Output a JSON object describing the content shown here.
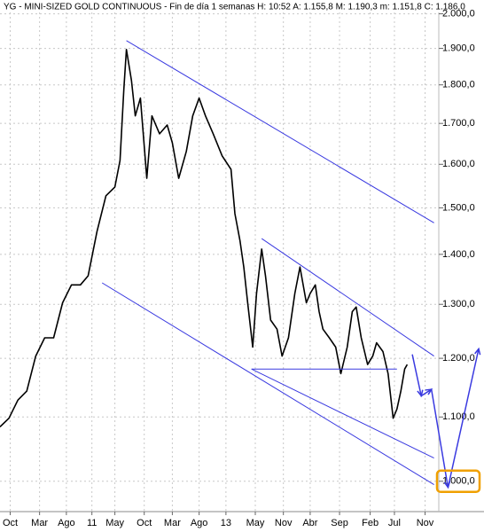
{
  "chart_data": {
    "type": "line",
    "title": "YG - MINI-SIZED GOLD CONTINUOUS - Fin de día 1 semanas  H: 10:52  A: 1.155,8  M: 1.190,3  m: 1.151,8  C: 1.186,0",
    "log_scale": true,
    "grid": true,
    "color": "#000000",
    "x": [
      0,
      7,
      14,
      21,
      28,
      35,
      42,
      49,
      56,
      63,
      69,
      76,
      83,
      90,
      94,
      97,
      99,
      103,
      106,
      110,
      115,
      119,
      125,
      131,
      135,
      140,
      146,
      151,
      156,
      161,
      167,
      174,
      181,
      184,
      188,
      191,
      194,
      198,
      201,
      205,
      208,
      212,
      217,
      221,
      226,
      231,
      235,
      240,
      243,
      247,
      250,
      253,
      258,
      263,
      267,
      272,
      276,
      279,
      283,
      288,
      292,
      295,
      300,
      304,
      308,
      311,
      314,
      317,
      319
    ],
    "values": [
      1084,
      1098,
      1128,
      1143,
      1204,
      1237,
      1237,
      1303,
      1338,
      1338,
      1356,
      1448,
      1527,
      1547,
      1609,
      1788,
      1897,
      1812,
      1719,
      1765,
      1567,
      1719,
      1674,
      1696,
      1652,
      1567,
      1631,
      1719,
      1765,
      1719,
      1674,
      1620,
      1588,
      1487,
      1429,
      1374,
      1303,
      1220,
      1321,
      1411,
      1356,
      1270,
      1253,
      1204,
      1237,
      1321,
      1374,
      1303,
      1321,
      1338,
      1286,
      1253,
      1237,
      1220,
      1173,
      1220,
      1286,
      1295,
      1237,
      1189,
      1204,
      1228,
      1212,
      1173,
      1098,
      1113,
      1143,
      1181,
      1189
    ],
    "trendline_color": "#3a3ae0",
    "trendlines": [
      {
        "x": [
          99,
          340
        ],
        "values": [
          1922,
          1467
        ]
      },
      {
        "x": [
          205,
          340
        ],
        "values": [
          1433,
          1204
        ]
      },
      {
        "x": [
          197,
          311
        ],
        "values": [
          1181,
          1181
        ]
      },
      {
        "x": [
          197,
          340
        ],
        "values": [
          1181,
          1035
        ]
      },
      {
        "x": [
          80,
          340
        ],
        "values": [
          1342,
          995
        ]
      }
    ],
    "forecast": {
      "x": [
        323,
        330,
        338,
        351,
        375
      ],
      "values": [
        1207,
        1135,
        1146,
        991,
        1217
      ]
    },
    "highlight_color": "#f0a000",
    "xlim": [
      0,
      375
    ],
    "ylim": [
      956,
      2020
    ],
    "xticks": [
      {
        "value": 8,
        "label": "Oct"
      },
      {
        "value": 31,
        "label": "Mar"
      },
      {
        "value": 52,
        "label": "Ago"
      },
      {
        "value": 72,
        "label": "11"
      },
      {
        "value": 90,
        "label": "May"
      },
      {
        "value": 113,
        "label": "Oct"
      },
      {
        "value": 135,
        "label": "Mar"
      },
      {
        "value": 156,
        "label": "Ago"
      },
      {
        "value": 177,
        "label": "13"
      },
      {
        "value": 200,
        "label": "May"
      },
      {
        "value": 222,
        "label": "Nov"
      },
      {
        "value": 243,
        "label": "Abr"
      },
      {
        "value": 266,
        "label": "Sep"
      },
      {
        "value": 290,
        "label": "Feb"
      },
      {
        "value": 309,
        "label": "Jul"
      },
      {
        "value": 333,
        "label": "Nov"
      }
    ],
    "yticks": [
      {
        "value": 1000,
        "label": "1.000,0"
      },
      {
        "value": 1100,
        "label": "1.100,0"
      },
      {
        "value": 1200,
        "label": "1.200,0"
      },
      {
        "value": 1300,
        "label": "1.300,0"
      },
      {
        "value": 1400,
        "label": "1.400,0"
      },
      {
        "value": 1500,
        "label": "1.500,0"
      },
      {
        "value": 1600,
        "label": "1.600,0"
      },
      {
        "value": 1700,
        "label": "1.700,0"
      },
      {
        "value": 1800,
        "label": "1.800,0"
      },
      {
        "value": 1900,
        "label": "1.900,0"
      },
      {
        "value": 2000,
        "label": "2.000,0"
      }
    ]
  }
}
